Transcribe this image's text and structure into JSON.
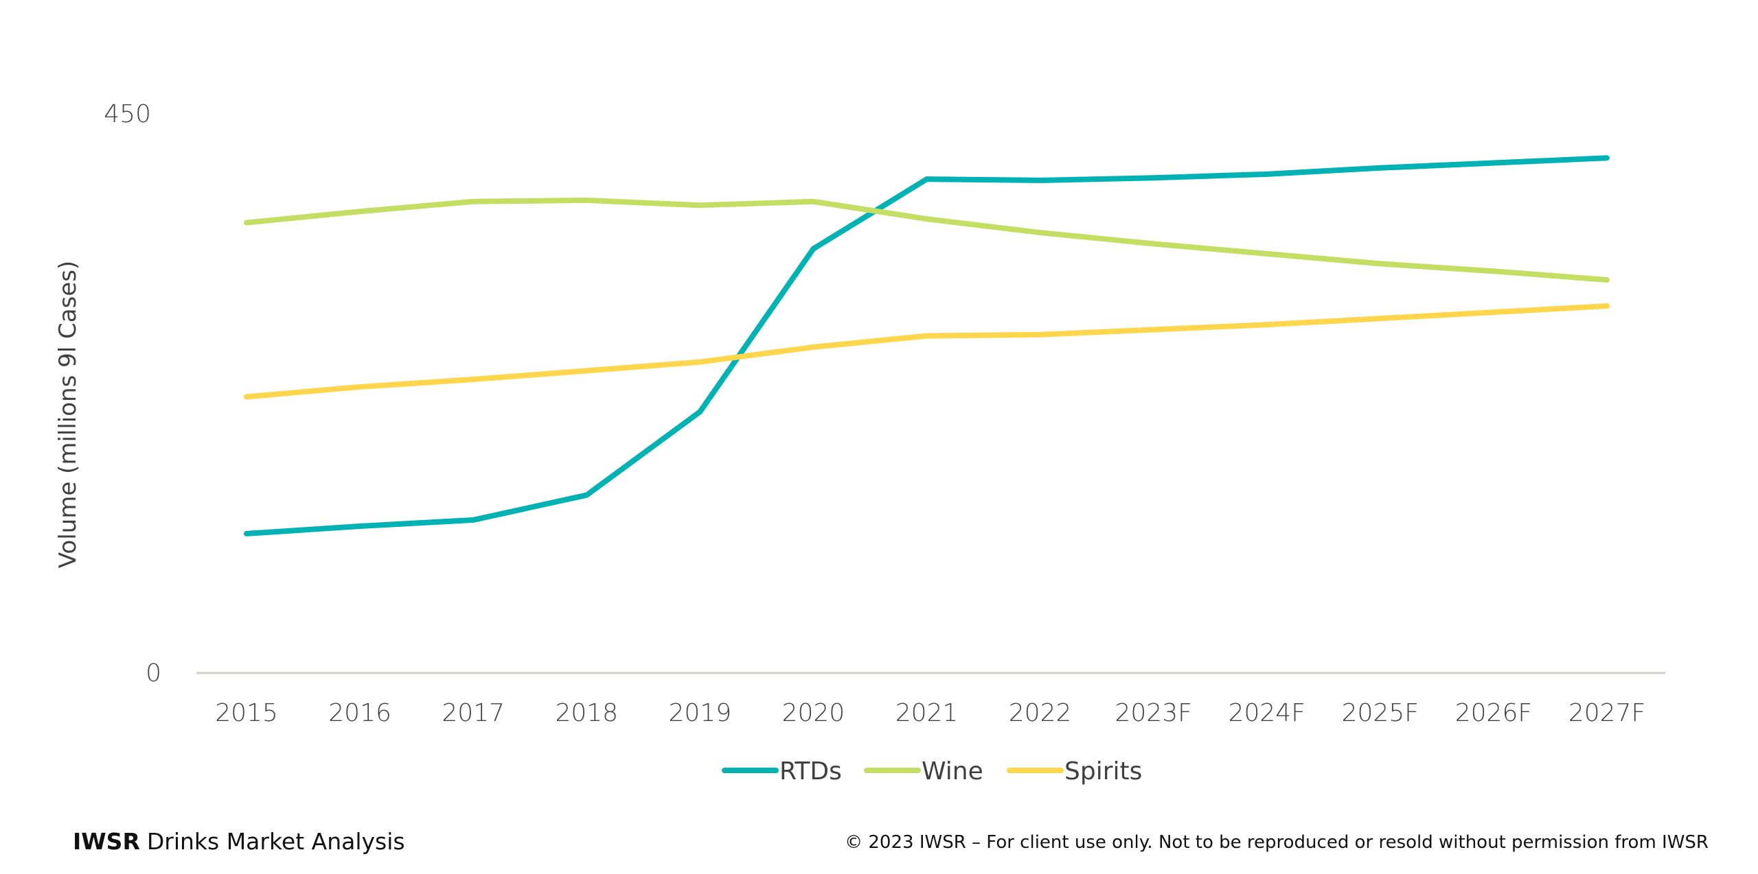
{
  "chart_data": {
    "type": "line",
    "title": "",
    "xlabel": "",
    "ylabel": "Volume (millions  9l Cases)",
    "ylim": [
      0,
      450
    ],
    "yticks": [
      "0",
      "450"
    ],
    "grid": false,
    "legend_position": "bottom",
    "categories": [
      "2015",
      "2016",
      "2017",
      "2018",
      "2019",
      "2020",
      "2021",
      "2022",
      "2023F",
      "2024F",
      "2025F",
      "2026F",
      "2027F"
    ],
    "series": [
      {
        "name": "RTDs",
        "color": "#00b2b4",
        "values": [
          112,
          118,
          123,
          143,
          210,
          341,
          397,
          396,
          398,
          401,
          406,
          410,
          414
        ]
      },
      {
        "name": "Wine",
        "color": "#c4dd63",
        "values": [
          362,
          371,
          379,
          380,
          376,
          379,
          365,
          354,
          345,
          337,
          329,
          323,
          316
        ]
      },
      {
        "name": "Spirits",
        "color": "#fdd64c",
        "values": [
          222,
          230,
          236,
          243,
          250,
          262,
          271,
          272,
          276,
          280,
          285,
          290,
          295
        ]
      }
    ]
  },
  "footer": {
    "brand": "IWSR",
    "brand_suffix": "Drinks Market Analysis",
    "copyright": "© 2023 IWSR – For client use only. Not to be reproduced or resold without permission from IWSR"
  }
}
